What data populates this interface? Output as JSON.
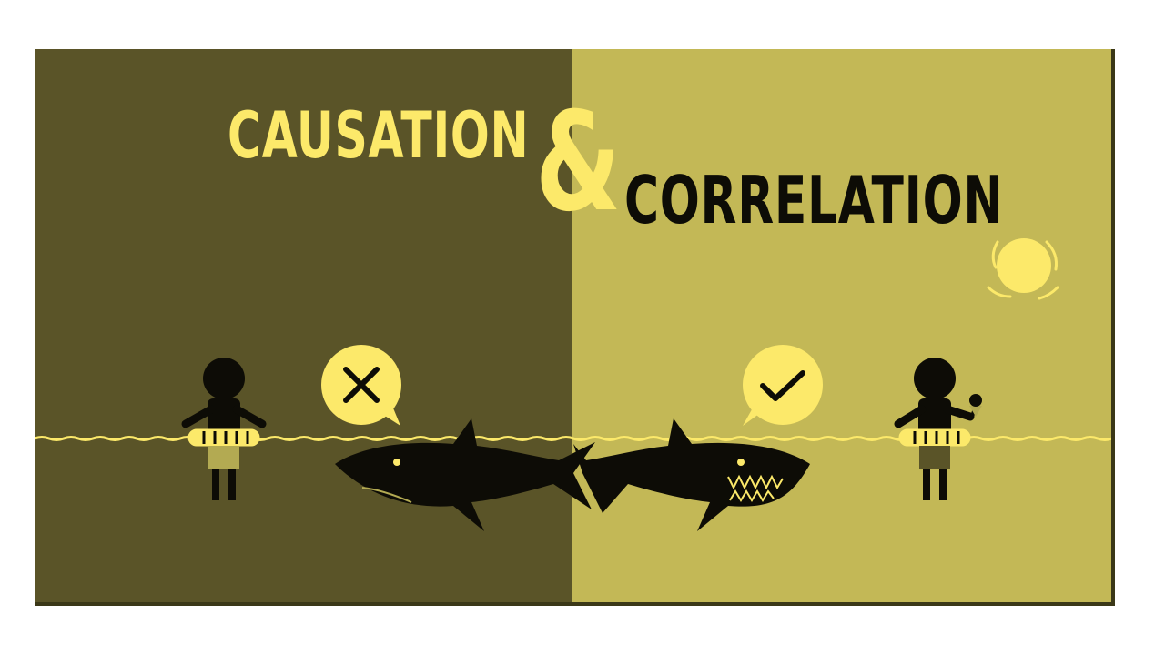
{
  "title": {
    "causation": "CAUSATION",
    "ampersand": "&",
    "correlation": "CORRELATION"
  },
  "colors": {
    "left_background": "#5a5428",
    "right_background": "#c3b856",
    "accent_yellow": "#fce96a",
    "figure_black": "#0d0c06",
    "left_shorts": "#b3aa52",
    "right_shorts": "#5a5428"
  },
  "icons": {
    "left_bubble": "x-mark-icon",
    "right_bubble": "check-mark-icon",
    "sun": "sun-icon",
    "ice_cream": "ice-cream-icon"
  }
}
